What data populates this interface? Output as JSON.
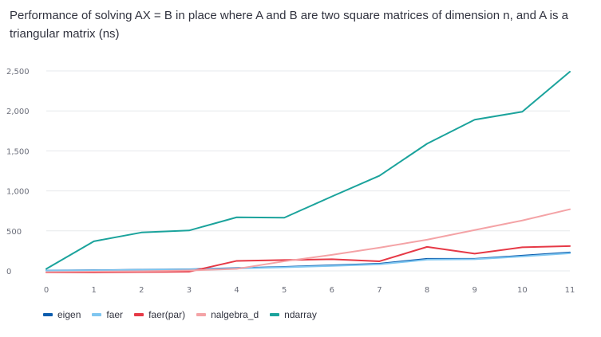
{
  "chart_data": {
    "type": "line",
    "title": "Performance of solving AX = B in place where A and B are two square matrices of dimension n, and A is a triangular matrix (ns)",
    "xlabel": "",
    "ylabel": "",
    "x": [
      0,
      1,
      2,
      3,
      4,
      5,
      6,
      7,
      8,
      9,
      10,
      11
    ],
    "xlim": [
      0,
      11
    ],
    "ylim": [
      -30,
      2550
    ],
    "yticks": [
      0,
      500,
      1000,
      1500,
      2000,
      2500
    ],
    "ytick_labels": [
      "0",
      "500",
      "1,000",
      "1,500",
      "2,000",
      "2,500"
    ],
    "grid": "horizontal",
    "legend_position": "bottom-left",
    "series": [
      {
        "name": "eigen",
        "color": "#0b5cad",
        "values": [
          5,
          8,
          15,
          20,
          35,
          50,
          70,
          90,
          150,
          150,
          190,
          230
        ]
      },
      {
        "name": "faer",
        "color": "#7fc6f0",
        "values": [
          4,
          6,
          12,
          17,
          30,
          45,
          62,
          82,
          140,
          145,
          180,
          220
        ]
      },
      {
        "name": "faer(par)",
        "color": "#e63946",
        "values": [
          -20,
          -20,
          -15,
          -10,
          125,
          135,
          145,
          120,
          300,
          215,
          295,
          310
        ]
      },
      {
        "name": "nalgebra_d",
        "color": "#f4a3a6",
        "values": [
          -15,
          -10,
          -5,
          5,
          25,
          120,
          200,
          290,
          390,
          510,
          630,
          770
        ]
      },
      {
        "name": "ndarray",
        "color": "#1ba39c",
        "values": [
          25,
          370,
          480,
          505,
          670,
          665,
          930,
          1190,
          1590,
          1890,
          1990,
          2490
        ]
      }
    ]
  }
}
